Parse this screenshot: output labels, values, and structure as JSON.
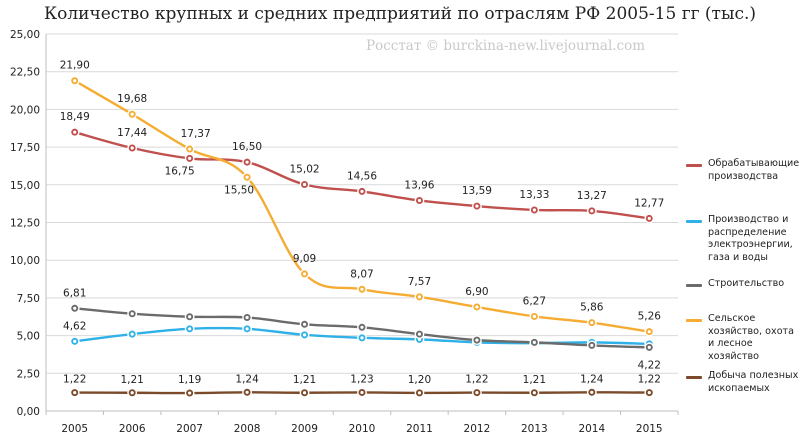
{
  "title": "Количество крупных и средних предприятий по отраслям РФ 2005-15 гг (тыс.)",
  "watermark": "Росстат © burckina-new.livejournal.com",
  "chart_data": {
    "type": "line",
    "categories": [
      "2005",
      "2006",
      "2007",
      "2008",
      "2009",
      "2010",
      "2011",
      "2012",
      "2013",
      "2014",
      "2015"
    ],
    "ylim": [
      0,
      25
    ],
    "yticks": [
      "0,00",
      "2,50",
      "5,00",
      "7,50",
      "10,00",
      "12,50",
      "15,00",
      "17,50",
      "20,00",
      "22,50",
      "25,00"
    ],
    "grid": true,
    "legend_position": "right",
    "series": [
      {
        "name": "Обрабатывающие производства",
        "color": "#c0504d",
        "values": [
          18.49,
          17.44,
          16.75,
          16.5,
          15.02,
          14.56,
          13.96,
          13.59,
          13.33,
          13.27,
          12.77
        ],
        "labels": [
          "18,49",
          "17,44",
          "16,75",
          "16,50",
          "15,02",
          "14,56",
          "13,96",
          "13,59",
          "13,33",
          "13,27",
          "12,77"
        ]
      },
      {
        "name": "Производство и распределение электроэнергии, газа и воды",
        "color": "#2fb1e8",
        "values": [
          4.62,
          5.1,
          5.45,
          5.45,
          5.05,
          4.85,
          4.75,
          4.55,
          4.5,
          4.55,
          4.45
        ],
        "labels": [
          "4,62",
          "",
          "",
          "",
          "",
          "",
          "",
          "",
          "",
          "",
          ""
        ]
      },
      {
        "name": "Строительство",
        "color": "#6b6b6b",
        "values": [
          6.81,
          6.45,
          6.25,
          6.2,
          5.75,
          5.55,
          5.1,
          4.7,
          4.55,
          4.35,
          4.22
        ],
        "labels": [
          "6,81",
          "",
          "",
          "",
          "",
          "",
          "",
          "",
          "",
          "",
          "4,22"
        ]
      },
      {
        "name": "Сельское хозяйство, охота и лесное хозяйство",
        "color": "#f5ac32",
        "values": [
          21.9,
          19.68,
          17.37,
          15.5,
          9.09,
          8.07,
          7.57,
          6.9,
          6.27,
          5.86,
          5.26
        ],
        "labels": [
          "21,90",
          "19,68",
          "17,37",
          "15,50",
          "9,09",
          "8,07",
          "7,57",
          "6,90",
          "6,27",
          "5,86",
          "5,26"
        ]
      },
      {
        "name": "Добыча полезных ископаемых",
        "color": "#7b4a2a",
        "values": [
          1.22,
          1.21,
          1.19,
          1.24,
          1.21,
          1.23,
          1.2,
          1.22,
          1.21,
          1.24,
          1.22
        ],
        "labels": [
          "1,22",
          "1,21",
          "1,19",
          "1,24",
          "1,21",
          "1,23",
          "1,20",
          "1,22",
          "1,21",
          "1,24",
          "1,22"
        ]
      }
    ]
  },
  "legend": [
    {
      "label": "Обрабатывающие производства",
      "color": "#c0504d"
    },
    {
      "label": "Производство и распределение электроэнергии, газа и воды",
      "color": "#2fb1e8"
    },
    {
      "label": "Строительство",
      "color": "#6b6b6b"
    },
    {
      "label": "Сельское хозяйство, охота и лесное хозяйство",
      "color": "#f5ac32"
    },
    {
      "label": "Добыча полезных ископаемых",
      "color": "#7b4a2a"
    }
  ]
}
